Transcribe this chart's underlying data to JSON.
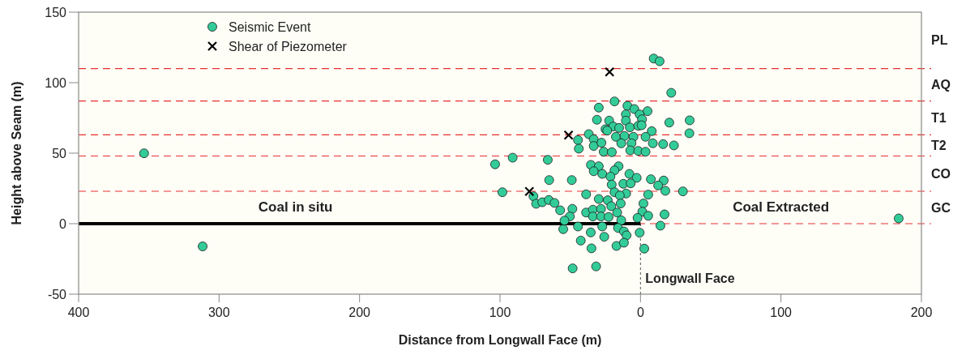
{
  "chart_data": {
    "type": "scatter",
    "xlabel": "Distance from Longwall Face (m)",
    "ylabel": "Height above Seam (m)",
    "xlim": [
      400,
      -200
    ],
    "xticks": [
      400,
      300,
      200,
      100,
      0,
      {
        "value": -100,
        "label": "100"
      },
      {
        "value": -200,
        "label": "200"
      }
    ],
    "ylim": [
      -50,
      150
    ],
    "yticks": [
      -50,
      0,
      50,
      100,
      150
    ],
    "grid": false,
    "legend": "top left",
    "series": [
      {
        "type": "line",
        "color": "#000000",
        "marker": "none",
        "line_style": "solid",
        "x": [
          400,
          0
        ],
        "values": [
          0,
          0
        ]
      },
      {
        "name": "Seismic Event",
        "color": "#33cc99",
        "marker": "circle",
        "x": [
          353.4,
          311.7,
          -183.8,
          29.7,
          31,
          36.8,
          44.5,
          43.9,
          33.3,
          33.3,
          27.8,
          26.2,
          103.5,
          91,
          66,
          65,
          48.9,
          98.3,
          35.3,
          29.7,
          33.3,
          27.2,
          38.7,
          29.7,
          76.2,
          74.3,
          69.9,
          65.3,
          61.2,
          57.2,
          48.5,
          50.3,
          54.1,
          55,
          44.5,
          35.4,
          42.5,
          34.9,
          48.3,
          31.6,
          38.7,
          33.9,
          33.9,
          28.1,
          28.1,
          27.2,
          25.8,
          24.9,
          -9.4,
          -13.6,
          -21.9,
          18.5,
          9.3,
          4.4,
          -5,
          10.4,
          0.6,
          -1.1,
          22.3,
          10.4,
          -20.5,
          -35,
          19.4,
          15.2,
          7.6,
          1.6,
          -0.8,
          23.7,
          -8,
          -34.8,
          17.5,
          11.4,
          5,
          -3.6,
          13.7,
          6.4,
          -8.8,
          -16.1,
          -23.8,
          20.4,
          7.3,
          1.6,
          -3.6,
          15.6,
          18.5,
          21.4,
          7.9,
          2.7,
          -7.4,
          -16.5,
          12.2,
          7,
          -12.6,
          20.5,
          18.5,
          10.2,
          14.7,
          -17.7,
          -30.2,
          -5.5,
          23.3,
          20.8,
          14.1,
          -2.1,
          16.6,
          22.7,
          -1.3,
          2.1,
          -5.5,
          -17.1,
          13.7,
          16,
          11.8,
          9.9,
          -14.2,
          0.6,
          17.1,
          11.8,
          -2.7
        ],
        "values": [
          49.9,
          -16.1,
          3.7,
          82.3,
          73.7,
          63.5,
          59.3,
          53.2,
          59.9,
          55.1,
          57.4,
          51,
          42.1,
          46.8,
          45.3,
          30.9,
          30.9,
          22.3,
          41.7,
          40.7,
          37.2,
          35.3,
          20.8,
          17.5,
          19.4,
          14.1,
          15.2,
          16.8,
          14.7,
          9.5,
          10.5,
          5.1,
          2.2,
          -3.9,
          -2,
          -6.2,
          -12,
          -17.5,
          -31.7,
          -30.3,
          7.9,
          9.9,
          5.1,
          10.5,
          5.1,
          -2,
          -9.3,
          67,
          117.1,
          115.2,
          92.8,
          86.7,
          83.6,
          81.3,
          79.8,
          77.5,
          77.5,
          74,
          73.1,
          73.1,
          71.7,
          73.3,
          68.9,
          67.9,
          68.3,
          69.4,
          69.8,
          66,
          65.6,
          64.1,
          61.6,
          62.2,
          61.6,
          61.6,
          57,
          57,
          57,
          56.4,
          55.5,
          50.7,
          52,
          51.6,
          51,
          40.7,
          37.8,
          33.4,
          35.3,
          32.5,
          31.5,
          30.6,
          28.3,
          28.6,
          27.1,
          27.7,
          22.3,
          21.4,
          20,
          23.3,
          22.9,
          20.6,
          16.6,
          12.4,
          14.3,
          14.3,
          7.9,
          4.7,
          8.5,
          4.1,
          5.6,
          6.6,
          2.4,
          -3,
          -5.5,
          -8.3,
          -1.4,
          -6.4,
          -15.8,
          -13.5,
          -17.7
        ]
      },
      {
        "name": "Shear of Piezometer",
        "color": "#000000",
        "marker": "cross",
        "x": [
          79.1,
          51.2,
          22
        ],
        "values": [
          22.9,
          62.8,
          107.6
        ]
      }
    ],
    "ref_lines": [
      {
        "axis": "y",
        "value": 110,
        "label": "PL",
        "color": "#e83030",
        "line_style": "dashed"
      },
      {
        "axis": "y",
        "value": 87,
        "label": "AQ",
        "color": "#e83030",
        "line_style": "dashed"
      },
      {
        "axis": "y",
        "value": 63,
        "label": "T1",
        "color": "#e83030",
        "line_style": "dashed"
      },
      {
        "axis": "y",
        "value": 48,
        "label": "T2",
        "color": "#e83030",
        "line_style": "dashed"
      },
      {
        "axis": "y",
        "value": 23,
        "label": "CO",
        "color": "#e83030",
        "line_style": "dashed"
      },
      {
        "axis": "y",
        "value": 0,
        "label": "GC",
        "color": "#e83030",
        "line_style": "dashed"
      },
      {
        "axis": "x",
        "value": 0,
        "label": "Longwall Face",
        "color": "#555555",
        "line_style": "dashed"
      }
    ],
    "annotations": [
      "Coal in situ",
      "Coal Extracted"
    ]
  }
}
